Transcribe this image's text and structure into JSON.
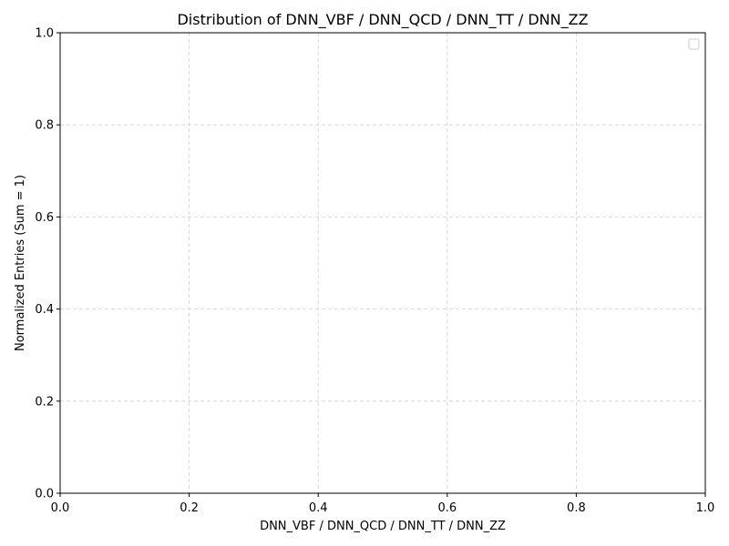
{
  "chart_data": {
    "type": "line",
    "title": "Distribution of DNN_VBF / DNN_QCD / DNN_TT / DNN_ZZ",
    "xlabel": "DNN_VBF / DNN_QCD / DNN_TT / DNN_ZZ",
    "ylabel": "Normalized Entries (Sum = 1)",
    "xlim": [
      0.0,
      1.0
    ],
    "ylim": [
      0.0,
      1.0
    ],
    "x_ticks": [
      "0.0",
      "0.2",
      "0.4",
      "0.6",
      "0.8",
      "1.0"
    ],
    "y_ticks": [
      "0.0",
      "0.2",
      "0.4",
      "0.6",
      "0.8",
      "1.0"
    ],
    "series": [],
    "grid": true,
    "grid_style": "dashed",
    "legend": {
      "placement": "top-right",
      "entries": []
    }
  },
  "colors": {
    "background": "#ffffff",
    "axes": "#000000",
    "grid": "#d0d0d0",
    "legend_border": "#cccccc"
  }
}
